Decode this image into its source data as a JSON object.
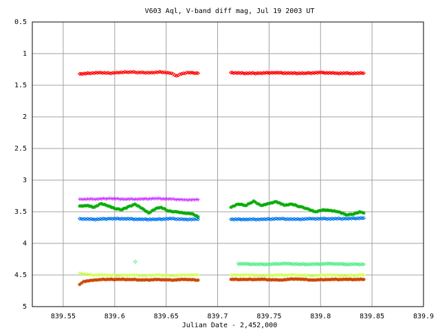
{
  "chart_data": {
    "type": "scatter",
    "title": "V603 Aql, V-band diff mag, Jul 19 2003 UT",
    "xlabel": "Julian Date - 2,452,000",
    "ylabel": "",
    "xlim": [
      839.52,
      839.9
    ],
    "ylim": [
      0.5,
      5
    ],
    "y_inverted": true,
    "grid": true,
    "legend": "none",
    "x_ticks": [
      {
        "value": 839.55,
        "label": "839.55"
      },
      {
        "value": 839.6,
        "label": "839.6"
      },
      {
        "value": 839.65,
        "label": "839.65"
      },
      {
        "value": 839.7,
        "label": "839.7"
      },
      {
        "value": 839.75,
        "label": "839.75"
      },
      {
        "value": 839.8,
        "label": "839.8"
      },
      {
        "value": 839.85,
        "label": "839.85"
      },
      {
        "value": 839.9,
        "label": "839.9"
      }
    ],
    "y_ticks": [
      {
        "value": 0.5,
        "label": "0.5"
      },
      {
        "value": 1,
        "label": "1"
      },
      {
        "value": 1.5,
        "label": "1.5"
      },
      {
        "value": 2,
        "label": "2"
      },
      {
        "value": 2.5,
        "label": "2.5"
      },
      {
        "value": 3,
        "label": "3"
      },
      {
        "value": 3.5,
        "label": "3.5"
      },
      {
        "value": 4,
        "label": "4"
      },
      {
        "value": 4.5,
        "label": "4.5"
      },
      {
        "value": 5,
        "label": "5"
      }
    ],
    "series": [
      {
        "color": "#ff0000",
        "marker": "diamond",
        "points": [
          [
            839.566,
            1.32
          ],
          [
            839.575,
            1.31
          ],
          [
            839.585,
            1.3
          ],
          [
            839.595,
            1.31
          ],
          [
            839.605,
            1.3
          ],
          [
            839.615,
            1.29
          ],
          [
            839.625,
            1.3
          ],
          [
            839.635,
            1.3
          ],
          [
            839.645,
            1.29
          ],
          [
            839.655,
            1.31
          ],
          [
            839.66,
            1.35
          ],
          [
            839.665,
            1.32
          ],
          [
            839.672,
            1.3
          ],
          [
            839.681,
            1.31
          ],
          [
            839.713,
            1.3
          ],
          [
            839.725,
            1.31
          ],
          [
            839.74,
            1.31
          ],
          [
            839.755,
            1.3
          ],
          [
            839.77,
            1.31
          ],
          [
            839.785,
            1.31
          ],
          [
            839.8,
            1.3
          ],
          [
            839.815,
            1.31
          ],
          [
            839.83,
            1.31
          ],
          [
            839.842,
            1.31
          ]
        ]
      },
      {
        "color": "#cc33ff",
        "marker": "cross",
        "points": [
          [
            839.566,
            3.3
          ],
          [
            839.58,
            3.3
          ],
          [
            839.595,
            3.29
          ],
          [
            839.61,
            3.3
          ],
          [
            839.625,
            3.3
          ],
          [
            839.64,
            3.29
          ],
          [
            839.655,
            3.3
          ],
          [
            839.668,
            3.31
          ],
          [
            839.681,
            3.31
          ]
        ]
      },
      {
        "color": "#00aa00",
        "marker": "star",
        "points": [
          [
            839.566,
            3.41
          ],
          [
            839.574,
            3.4
          ],
          [
            839.58,
            3.43
          ],
          [
            839.587,
            3.37
          ],
          [
            839.594,
            3.41
          ],
          [
            839.6,
            3.45
          ],
          [
            839.607,
            3.47
          ],
          [
            839.613,
            3.42
          ],
          [
            839.62,
            3.38
          ],
          [
            839.627,
            3.45
          ],
          [
            839.633,
            3.52
          ],
          [
            839.64,
            3.45
          ],
          [
            839.645,
            3.43
          ],
          [
            839.652,
            3.49
          ],
          [
            839.66,
            3.5
          ],
          [
            839.668,
            3.52
          ],
          [
            839.675,
            3.53
          ],
          [
            839.681,
            3.58
          ],
          [
            839.713,
            3.43
          ],
          [
            839.72,
            3.38
          ],
          [
            839.728,
            3.4
          ],
          [
            839.735,
            3.33
          ],
          [
            839.742,
            3.4
          ],
          [
            839.75,
            3.37
          ],
          [
            839.757,
            3.34
          ],
          [
            839.765,
            3.4
          ],
          [
            839.772,
            3.38
          ],
          [
            839.78,
            3.42
          ],
          [
            839.787,
            3.45
          ],
          [
            839.795,
            3.5
          ],
          [
            839.802,
            3.47
          ],
          [
            839.81,
            3.48
          ],
          [
            839.817,
            3.5
          ],
          [
            839.825,
            3.55
          ],
          [
            839.832,
            3.54
          ],
          [
            839.838,
            3.5
          ],
          [
            839.842,
            3.52
          ]
        ]
      },
      {
        "color": "#0077ee",
        "marker": "diamond",
        "points": [
          [
            839.566,
            3.61
          ],
          [
            839.58,
            3.62
          ],
          [
            839.595,
            3.61
          ],
          [
            839.61,
            3.61
          ],
          [
            839.625,
            3.62
          ],
          [
            839.64,
            3.62
          ],
          [
            839.655,
            3.61
          ],
          [
            839.668,
            3.62
          ],
          [
            839.681,
            3.62
          ],
          [
            839.713,
            3.62
          ],
          [
            839.728,
            3.62
          ],
          [
            839.744,
            3.62
          ],
          [
            839.76,
            3.61
          ],
          [
            839.776,
            3.62
          ],
          [
            839.792,
            3.61
          ],
          [
            839.808,
            3.61
          ],
          [
            839.824,
            3.61
          ],
          [
            839.842,
            3.6
          ]
        ]
      },
      {
        "color": "#55ee88",
        "marker": "diamond",
        "points": [
          [
            839.62,
            4.29
          ],
          [
            839.72,
            4.32
          ],
          [
            839.735,
            4.33
          ],
          [
            839.75,
            4.33
          ],
          [
            839.765,
            4.32
          ],
          [
            839.78,
            4.33
          ],
          [
            839.795,
            4.33
          ],
          [
            839.81,
            4.32
          ],
          [
            839.825,
            4.33
          ],
          [
            839.842,
            4.33
          ]
        ]
      },
      {
        "color": "#ccff44",
        "marker": "cross",
        "points": [
          [
            839.566,
            4.47
          ],
          [
            839.578,
            4.5
          ],
          [
            839.59,
            4.5
          ],
          [
            839.603,
            4.51
          ],
          [
            839.616,
            4.5
          ],
          [
            839.629,
            4.51
          ],
          [
            839.642,
            4.5
          ],
          [
            839.655,
            4.51
          ],
          [
            839.668,
            4.5
          ],
          [
            839.681,
            4.5
          ],
          [
            839.713,
            4.5
          ],
          [
            839.728,
            4.5
          ],
          [
            839.744,
            4.51
          ],
          [
            839.76,
            4.5
          ],
          [
            839.776,
            4.5
          ],
          [
            839.792,
            4.51
          ],
          [
            839.808,
            4.5
          ],
          [
            839.824,
            4.51
          ],
          [
            839.842,
            4.5
          ]
        ]
      },
      {
        "color": "#cc4400",
        "marker": "star",
        "points": [
          [
            839.566,
            4.65
          ],
          [
            839.57,
            4.6
          ],
          [
            839.58,
            4.58
          ],
          [
            839.59,
            4.57
          ],
          [
            839.603,
            4.57
          ],
          [
            839.616,
            4.57
          ],
          [
            839.629,
            4.58
          ],
          [
            839.642,
            4.57
          ],
          [
            839.655,
            4.58
          ],
          [
            839.668,
            4.57
          ],
          [
            839.681,
            4.58
          ],
          [
            839.713,
            4.57
          ],
          [
            839.728,
            4.57
          ],
          [
            839.744,
            4.57
          ],
          [
            839.76,
            4.58
          ],
          [
            839.776,
            4.56
          ],
          [
            839.792,
            4.58
          ],
          [
            839.808,
            4.57
          ],
          [
            839.824,
            4.57
          ],
          [
            839.842,
            4.57
          ]
        ]
      }
    ]
  }
}
